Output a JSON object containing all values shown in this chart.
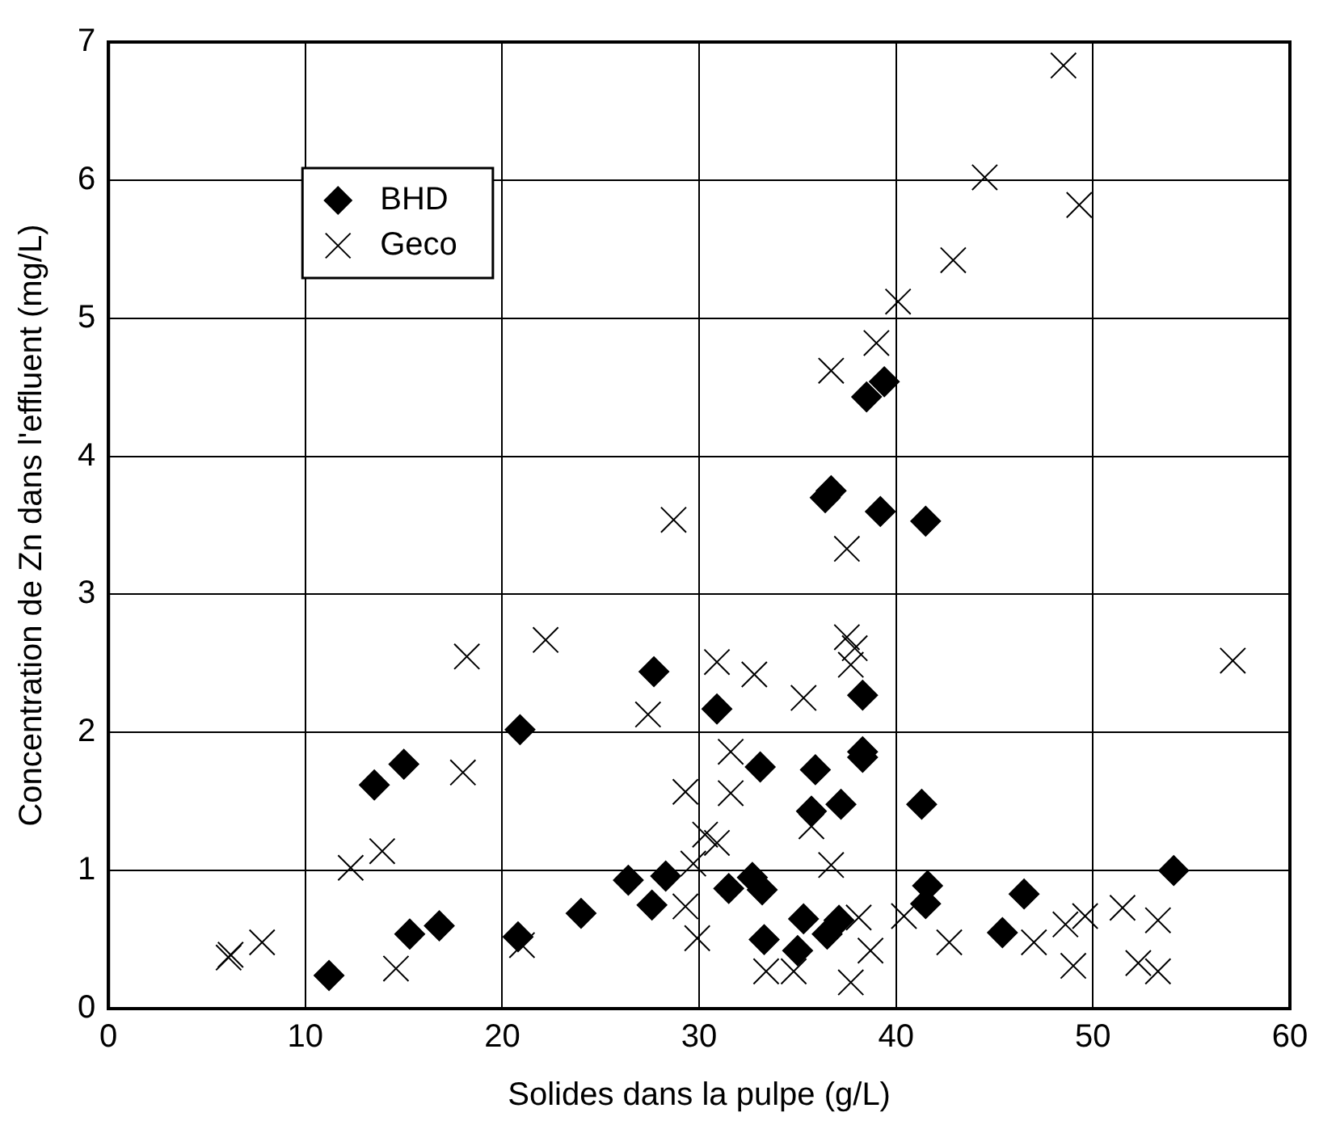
{
  "chart_data": {
    "type": "scatter",
    "xlabel": "Solides dans la pulpe (g/L)",
    "ylabel": "Concentration de Zn dans l'effluent (mg/L)",
    "xlim": [
      0,
      60
    ],
    "xticks": [
      0,
      10,
      20,
      30,
      40,
      50,
      60
    ],
    "ylim": [
      0,
      7
    ],
    "yticks": [
      0,
      1,
      2,
      3,
      4,
      5,
      6,
      7
    ],
    "grid": true,
    "legend": "top left",
    "series": [
      {
        "name": "BHD",
        "color": "#000000",
        "marker": "diamond",
        "x": [
          11.2,
          13.5,
          15.0,
          15.3,
          16.8,
          20.8,
          20.9,
          24.0,
          26.4,
          27.6,
          28.3,
          27.7,
          30.9,
          31.5,
          32.7,
          33.2,
          33.1,
          33.3,
          35.0,
          35.3,
          35.7,
          35.9,
          36.5,
          37.1,
          37.2,
          38.3,
          38.3,
          38.3,
          41.3,
          41.6,
          41.5,
          45.4,
          46.5,
          54.1,
          36.4,
          36.7,
          39.2,
          41.5,
          39.4,
          38.5
        ],
        "values": [
          0.24,
          1.62,
          1.77,
          0.54,
          0.6,
          0.52,
          2.02,
          0.69,
          0.93,
          0.75,
          0.96,
          2.44,
          2.17,
          0.87,
          0.95,
          0.86,
          1.75,
          0.5,
          0.42,
          0.65,
          1.43,
          1.73,
          0.54,
          0.64,
          1.48,
          2.27,
          1.86,
          1.82,
          1.48,
          0.89,
          0.76,
          0.55,
          0.83,
          1.0,
          3.7,
          3.75,
          3.6,
          3.53,
          4.54,
          4.43
        ]
      },
      {
        "name": "Geco",
        "color": "#000000",
        "marker": "cross",
        "x": [
          6.1,
          6.2,
          7.8,
          14.6,
          12.3,
          13.9,
          18.0,
          18.2,
          21.0,
          27.4,
          30.9,
          32.8,
          35.3,
          37.7,
          31.6,
          29.3,
          31.6,
          30.3,
          30.9,
          29.7,
          29.3,
          29.9,
          35.7,
          36.7,
          38.1,
          38.7,
          40.4,
          33.4,
          34.8,
          37.7,
          28.7,
          36.7,
          37.5,
          48.5,
          44.5,
          49.3,
          42.9,
          40.1,
          39.0,
          22.2,
          37.5,
          37.9,
          42.7,
          47.0,
          48.6,
          49.6,
          51.5,
          53.3,
          49.0,
          52.3,
          53.3,
          57.1
        ],
        "values": [
          0.37,
          0.39,
          0.48,
          0.29,
          1.02,
          1.14,
          1.71,
          2.55,
          0.46,
          2.13,
          2.51,
          2.42,
          2.25,
          2.49,
          1.86,
          1.57,
          1.56,
          1.26,
          1.2,
          1.05,
          0.74,
          0.51,
          1.32,
          1.04,
          0.66,
          0.42,
          0.67,
          0.27,
          0.27,
          0.19,
          3.54,
          4.62,
          3.33,
          6.83,
          6.02,
          5.82,
          5.42,
          5.12,
          4.82,
          2.67,
          2.69,
          2.61,
          0.48,
          0.48,
          0.61,
          0.67,
          0.73,
          0.64,
          0.31,
          0.33,
          0.27,
          2.52
        ]
      }
    ]
  }
}
